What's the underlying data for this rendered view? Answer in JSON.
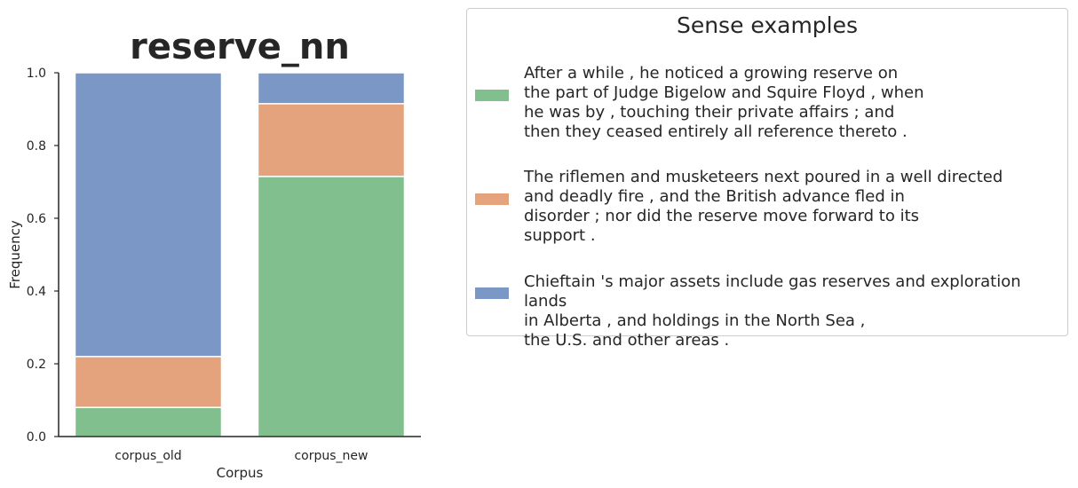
{
  "chart_data": {
    "type": "bar",
    "stacked": true,
    "title": "reserve_nn",
    "xlabel": "Corpus",
    "ylabel": "Frequency",
    "ylim": [
      0,
      1.0
    ],
    "yticks": [
      "0.0",
      "0.2",
      "0.4",
      "0.6",
      "0.8",
      "1.0"
    ],
    "categories": [
      "corpus_old",
      "corpus_new"
    ],
    "grid": false,
    "legend_position": "right",
    "series": [
      {
        "color": "#81bf8e",
        "values": [
          0.08,
          0.715
        ]
      },
      {
        "color": "#e4a37d",
        "values": [
          0.14,
          0.2
        ]
      },
      {
        "color": "#7a97c5",
        "values": [
          0.78,
          0.085
        ]
      }
    ]
  },
  "legend": {
    "title": "Sense examples",
    "entries": [
      {
        "color": "#81bf8e",
        "text": "After a while , he noticed a growing reserve on\nthe part of Judge Bigelow and Squire Floyd , when\nhe was by , touching their private affairs ; and\nthen they ceased entirely all reference thereto ."
      },
      {
        "color": "#e4a37d",
        "text": "The riflemen and musketeers next poured in a well directed\nand deadly fire , and the British advance fled in\ndisorder ; nor did the reserve move forward to its\nsupport ."
      },
      {
        "color": "#7a97c5",
        "text": "Chieftain 's major assets include gas reserves and exploration lands\nin Alberta , and holdings in the North Sea ,\nthe U.S. and other areas ."
      }
    ]
  }
}
